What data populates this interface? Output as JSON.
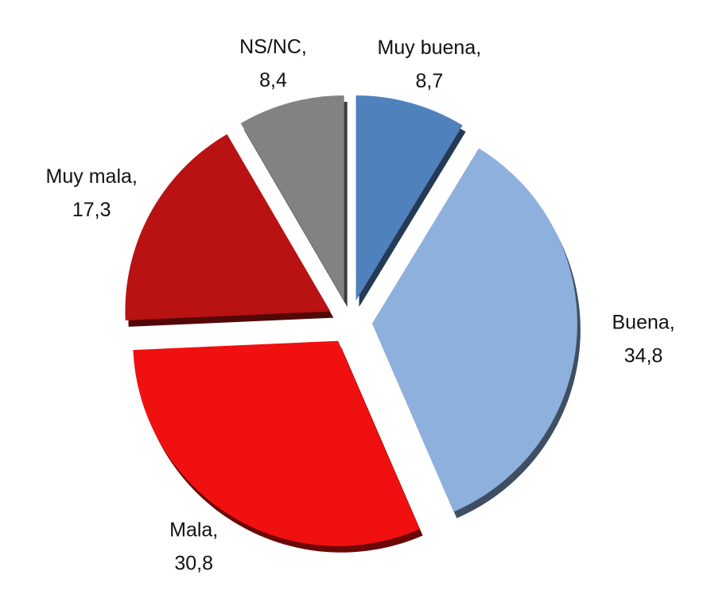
{
  "chart_data": {
    "type": "pie",
    "categories": [
      "Muy buena,",
      "Buena,",
      "Mala,",
      "Muy mala,",
      "NS/NC,"
    ],
    "values": [
      8.7,
      34.8,
      30.8,
      17.3,
      8.4
    ],
    "value_labels": [
      "8,7",
      "34,8",
      "30,8",
      "17,3",
      "8,4"
    ],
    "colors": [
      "#4f81bd",
      "#8db0dc",
      "#f01010",
      "#b81212",
      "#828282"
    ]
  }
}
